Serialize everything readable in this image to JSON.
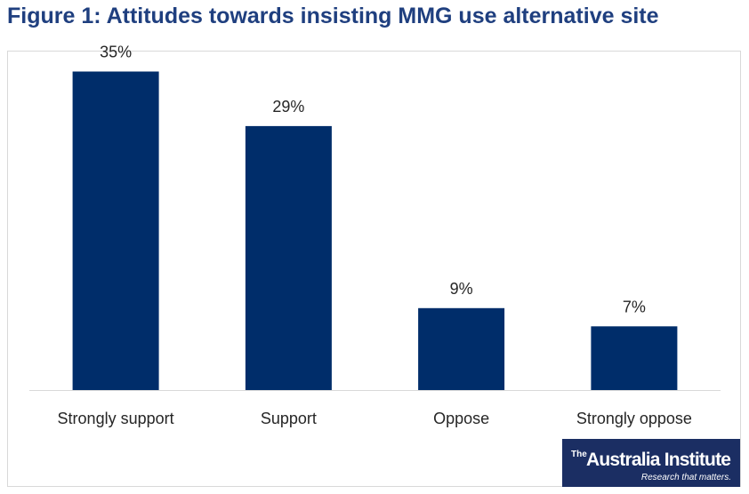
{
  "title": "Figure 1: Attitudes towards insisting MMG use alternative site",
  "logo": {
    "the": "The",
    "brand": "Australia Institute",
    "tagline": "Research that matters."
  },
  "colors": {
    "bar": "#002d6a",
    "title": "#1f3f7f",
    "logo_bg": "#1b2e63"
  },
  "chart_data": {
    "type": "bar",
    "title": "Figure 1: Attitudes towards insisting MMG use alternative site",
    "categories": [
      "Strongly support",
      "Support",
      "Oppose",
      "Strongly oppose"
    ],
    "values": [
      35,
      29,
      9,
      7
    ],
    "value_labels": [
      "35%",
      "29%",
      "9%",
      "7%"
    ],
    "unit": "%",
    "ylim": [
      0,
      37
    ],
    "grid": false,
    "legend": "none"
  }
}
